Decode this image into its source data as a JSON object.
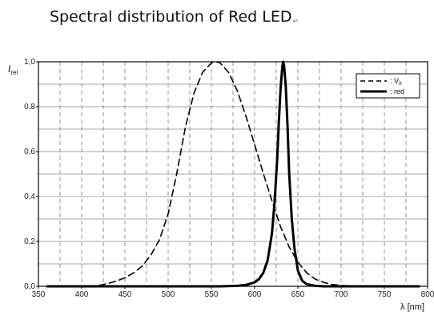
{
  "title": "Spectral distribution of Red LED",
  "paragraph_mark": "↵",
  "chart_data": {
    "type": "line",
    "xlabel": "λ [nm]",
    "ylabel": "I",
    "ylabel_sub": "rel",
    "xlim": [
      350,
      800
    ],
    "ylim": [
      0,
      1.0
    ],
    "xticks": [
      350,
      400,
      450,
      500,
      550,
      600,
      650,
      700,
      750,
      800
    ],
    "xtick_labels": [
      "350",
      "400",
      "450",
      "500",
      "550",
      "600",
      "650",
      "700",
      "750",
      "800"
    ],
    "yticks": [
      0,
      0.2,
      0.4,
      0.6,
      0.8,
      1.0
    ],
    "ytick_labels": [
      "0,0",
      "0,2",
      "0,4",
      "0,6",
      "0,8",
      "1,0"
    ],
    "grid": true,
    "legend_position": "top-right",
    "series": [
      {
        "name": ": V",
        "name_sub": "λ",
        "style": "dashed",
        "color": "#000000",
        "x": [
          360,
          380,
          400,
          420,
          430,
          440,
          450,
          460,
          470,
          480,
          490,
          500,
          510,
          520,
          530,
          540,
          550,
          555,
          560,
          570,
          580,
          590,
          600,
          610,
          620,
          630,
          640,
          650,
          660,
          670,
          680,
          690,
          700,
          720,
          760,
          790
        ],
        "y": [
          0.0,
          0.0,
          0.0,
          0.004,
          0.012,
          0.023,
          0.038,
          0.06,
          0.09,
          0.139,
          0.208,
          0.323,
          0.503,
          0.71,
          0.862,
          0.954,
          0.995,
          1.0,
          0.995,
          0.952,
          0.87,
          0.757,
          0.631,
          0.503,
          0.381,
          0.265,
          0.175,
          0.107,
          0.061,
          0.032,
          0.017,
          0.008,
          0.004,
          0.001,
          0.0,
          0.0
        ]
      },
      {
        "name": ": red",
        "style": "solid",
        "color": "#000000",
        "x": [
          360,
          560,
          580,
          590,
          600,
          605,
          610,
          615,
          620,
          623,
          626,
          628,
          630,
          632,
          633,
          634,
          636,
          638,
          640,
          643,
          646,
          650,
          655,
          660,
          670,
          680,
          790
        ],
        "y": [
          0.0,
          0.0,
          0.002,
          0.006,
          0.018,
          0.032,
          0.06,
          0.115,
          0.235,
          0.37,
          0.56,
          0.73,
          0.88,
          0.98,
          1.0,
          0.985,
          0.89,
          0.72,
          0.5,
          0.3,
          0.17,
          0.07,
          0.025,
          0.01,
          0.002,
          0.0,
          0.0
        ]
      }
    ]
  }
}
